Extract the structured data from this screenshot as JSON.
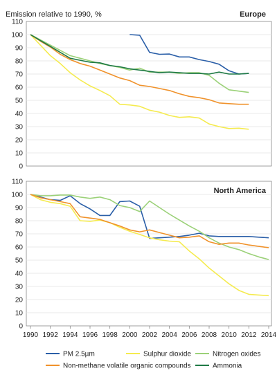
{
  "chart_data": [
    {
      "type": "line",
      "region": "Europe",
      "ylabel": "Emission relative to 1990, %",
      "ylim": [
        0,
        110
      ],
      "yticks": [
        0,
        10,
        20,
        30,
        40,
        50,
        60,
        70,
        80,
        90,
        100,
        110
      ],
      "x": [
        1990,
        1991,
        1992,
        1993,
        1994,
        1995,
        1996,
        1997,
        1998,
        1999,
        2000,
        2001,
        2002,
        2003,
        2004,
        2005,
        2006,
        2007,
        2008,
        2009,
        2010,
        2011,
        2012
      ],
      "series": [
        {
          "name": "PM 2.5µm",
          "color": "#2b5fa8",
          "values": [
            null,
            null,
            null,
            null,
            null,
            null,
            null,
            null,
            null,
            null,
            100,
            99.5,
            86.5,
            85,
            85.2,
            83,
            83,
            81,
            79.5,
            77.5,
            72.5,
            70,
            70.5
          ]
        },
        {
          "name": "Sulphur dioxide",
          "color": "#f5eb4f",
          "values": [
            100,
            92,
            84,
            78,
            71,
            65.5,
            61,
            57.5,
            53.5,
            47,
            46.5,
            45.5,
            42.5,
            41,
            38.5,
            37,
            37.5,
            36.5,
            32,
            30,
            28.5,
            28.8,
            28
          ]
        },
        {
          "name": "Nitrogen oxides",
          "color": "#9bd178",
          "values": [
            100,
            96,
            92,
            88,
            84,
            82,
            80,
            78,
            76.5,
            75,
            73,
            74.5,
            71.5,
            71.5,
            71.5,
            70.5,
            71,
            71,
            69,
            63,
            58,
            57,
            56
          ]
        },
        {
          "name": "Non-methane volatile organic compounds",
          "color": "#f0922b",
          "values": [
            100,
            95,
            90.5,
            85,
            81,
            78,
            76,
            73,
            70,
            67,
            65,
            61.5,
            60.5,
            59,
            57.5,
            55,
            53,
            52,
            50.5,
            48,
            47.5,
            47,
            47
          ]
        },
        {
          "name": "Ammonia",
          "color": "#1f7a45",
          "values": [
            100,
            95.5,
            91,
            86.5,
            82,
            80.5,
            79,
            78.5,
            76.5,
            75.5,
            74,
            73,
            72,
            71,
            71.5,
            71,
            70.5,
            70.5,
            70,
            71.5,
            70,
            70,
            70.5
          ]
        }
      ]
    },
    {
      "type": "line",
      "region": "North America",
      "ylim": [
        0,
        110
      ],
      "yticks": [
        0,
        10,
        20,
        30,
        40,
        50,
        60,
        70,
        80,
        90,
        100,
        110
      ],
      "x": [
        1990,
        1991,
        1992,
        1993,
        1994,
        1995,
        1996,
        1997,
        1998,
        1999,
        2000,
        2001,
        2002,
        2003,
        2004,
        2005,
        2006,
        2007,
        2008,
        2009,
        2010,
        2011,
        2012,
        2013,
        2014
      ],
      "series": [
        {
          "name": "PM 2.5µm",
          "color": "#2b5fa8",
          "values": [
            100,
            98,
            96,
            95.5,
            99,
            93,
            89,
            84,
            84,
            94.5,
            95,
            91,
            66.5,
            67,
            67.5,
            68,
            69,
            70.5,
            68.5,
            68,
            68,
            68,
            68,
            67.5,
            67
          ]
        },
        {
          "name": "Sulphur dioxide",
          "color": "#f5eb4f",
          "values": [
            100,
            96,
            94,
            93,
            91,
            80,
            79.5,
            80.5,
            78.5,
            75,
            72,
            69.5,
            67,
            65.5,
            64.5,
            64,
            57,
            51,
            44,
            38,
            32,
            27,
            24,
            23.5,
            23
          ]
        },
        {
          "name": "Nitrogen oxides",
          "color": "#9bd178",
          "values": [
            100,
            99,
            99,
            99.5,
            99.5,
            98,
            97,
            98,
            96,
            91.5,
            90,
            87,
            95,
            90,
            85,
            80.5,
            76,
            72,
            67,
            63,
            60,
            58,
            55,
            52.5,
            50.5
          ]
        },
        {
          "name": "Non-methane volatile organic compounds",
          "color": "#f0922b",
          "values": [
            100,
            97.5,
            96,
            94.5,
            93,
            83,
            82,
            81,
            78.5,
            76,
            73,
            71.5,
            73,
            71,
            69,
            67,
            67.5,
            68.5,
            64,
            62,
            63,
            63,
            61.5,
            60.5,
            59.5
          ]
        }
      ]
    }
  ],
  "xticks": [
    "1990",
    "1992",
    "1994",
    "1996",
    "1998",
    "2000",
    "2002",
    "2004",
    "2006",
    "2008",
    "2010",
    "2012",
    "2014"
  ],
  "legend": [
    {
      "name": "PM 2.5µm",
      "color": "#2b5fa8"
    },
    {
      "name": "Sulphur dioxide",
      "color": "#f5eb4f"
    },
    {
      "name": "Nitrogen oxides",
      "color": "#9bd178"
    },
    {
      "name": "Non-methane volatile organic compounds",
      "color": "#f0922b"
    },
    {
      "name": "Ammonia",
      "color": "#1f7a45"
    }
  ]
}
